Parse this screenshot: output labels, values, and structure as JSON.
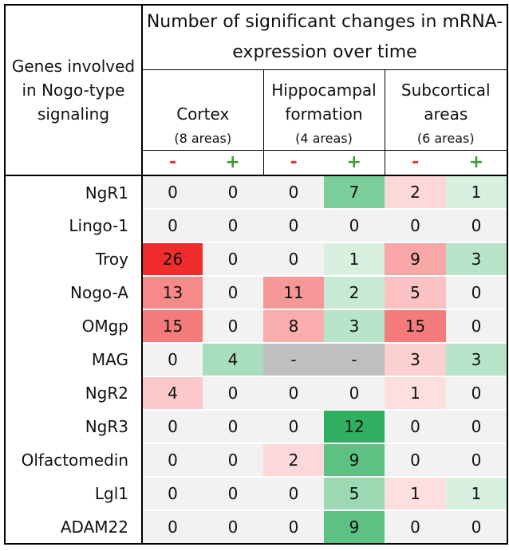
{
  "header": {
    "genes_label": "Genes involved in Nogo-type signaling",
    "main_title": "Number of significant changes in mRNA-expression over time",
    "regions": [
      {
        "name": "Cortex",
        "areas": "(8 areas)"
      },
      {
        "name": "Hippocampal formation",
        "areas": "(4 areas)"
      },
      {
        "name": "Subcortical areas",
        "areas": "(6 areas)"
      }
    ],
    "minus": "-",
    "plus": "+"
  },
  "rows": [
    {
      "gene": "NgR1",
      "values": [
        "0",
        "0",
        "0",
        "7",
        "2",
        "1"
      ]
    },
    {
      "gene": "Lingo-1",
      "values": [
        "0",
        "0",
        "0",
        "0",
        "0",
        "0"
      ]
    },
    {
      "gene": "Troy",
      "values": [
        "26",
        "0",
        "0",
        "1",
        "9",
        "3"
      ]
    },
    {
      "gene": "Nogo-A",
      "values": [
        "13",
        "0",
        "11",
        "2",
        "5",
        "0"
      ]
    },
    {
      "gene": "OMgp",
      "values": [
        "15",
        "0",
        "8",
        "3",
        "15",
        "0"
      ]
    },
    {
      "gene": "MAG",
      "values": [
        "0",
        "4",
        "-",
        "-",
        "3",
        "3"
      ]
    },
    {
      "gene": "NgR2",
      "values": [
        "4",
        "0",
        "0",
        "0",
        "1",
        "0"
      ]
    },
    {
      "gene": "NgR3",
      "values": [
        "0",
        "0",
        "0",
        "12",
        "0",
        "0"
      ]
    },
    {
      "gene": "Olfactomedin",
      "values": [
        "0",
        "0",
        "2",
        "9",
        "0",
        "0"
      ]
    },
    {
      "gene": "Lgl1",
      "values": [
        "0",
        "0",
        "0",
        "5",
        "1",
        "1"
      ]
    },
    {
      "gene": "ADAM22",
      "values": [
        "0",
        "0",
        "0",
        "9",
        "0",
        "0"
      ]
    }
  ],
  "colors": {
    "zero": "#f2f2f2",
    "na": "#c0c0c0",
    "decrease": "#ef2d2d",
    "increase": "#2fb060"
  }
}
